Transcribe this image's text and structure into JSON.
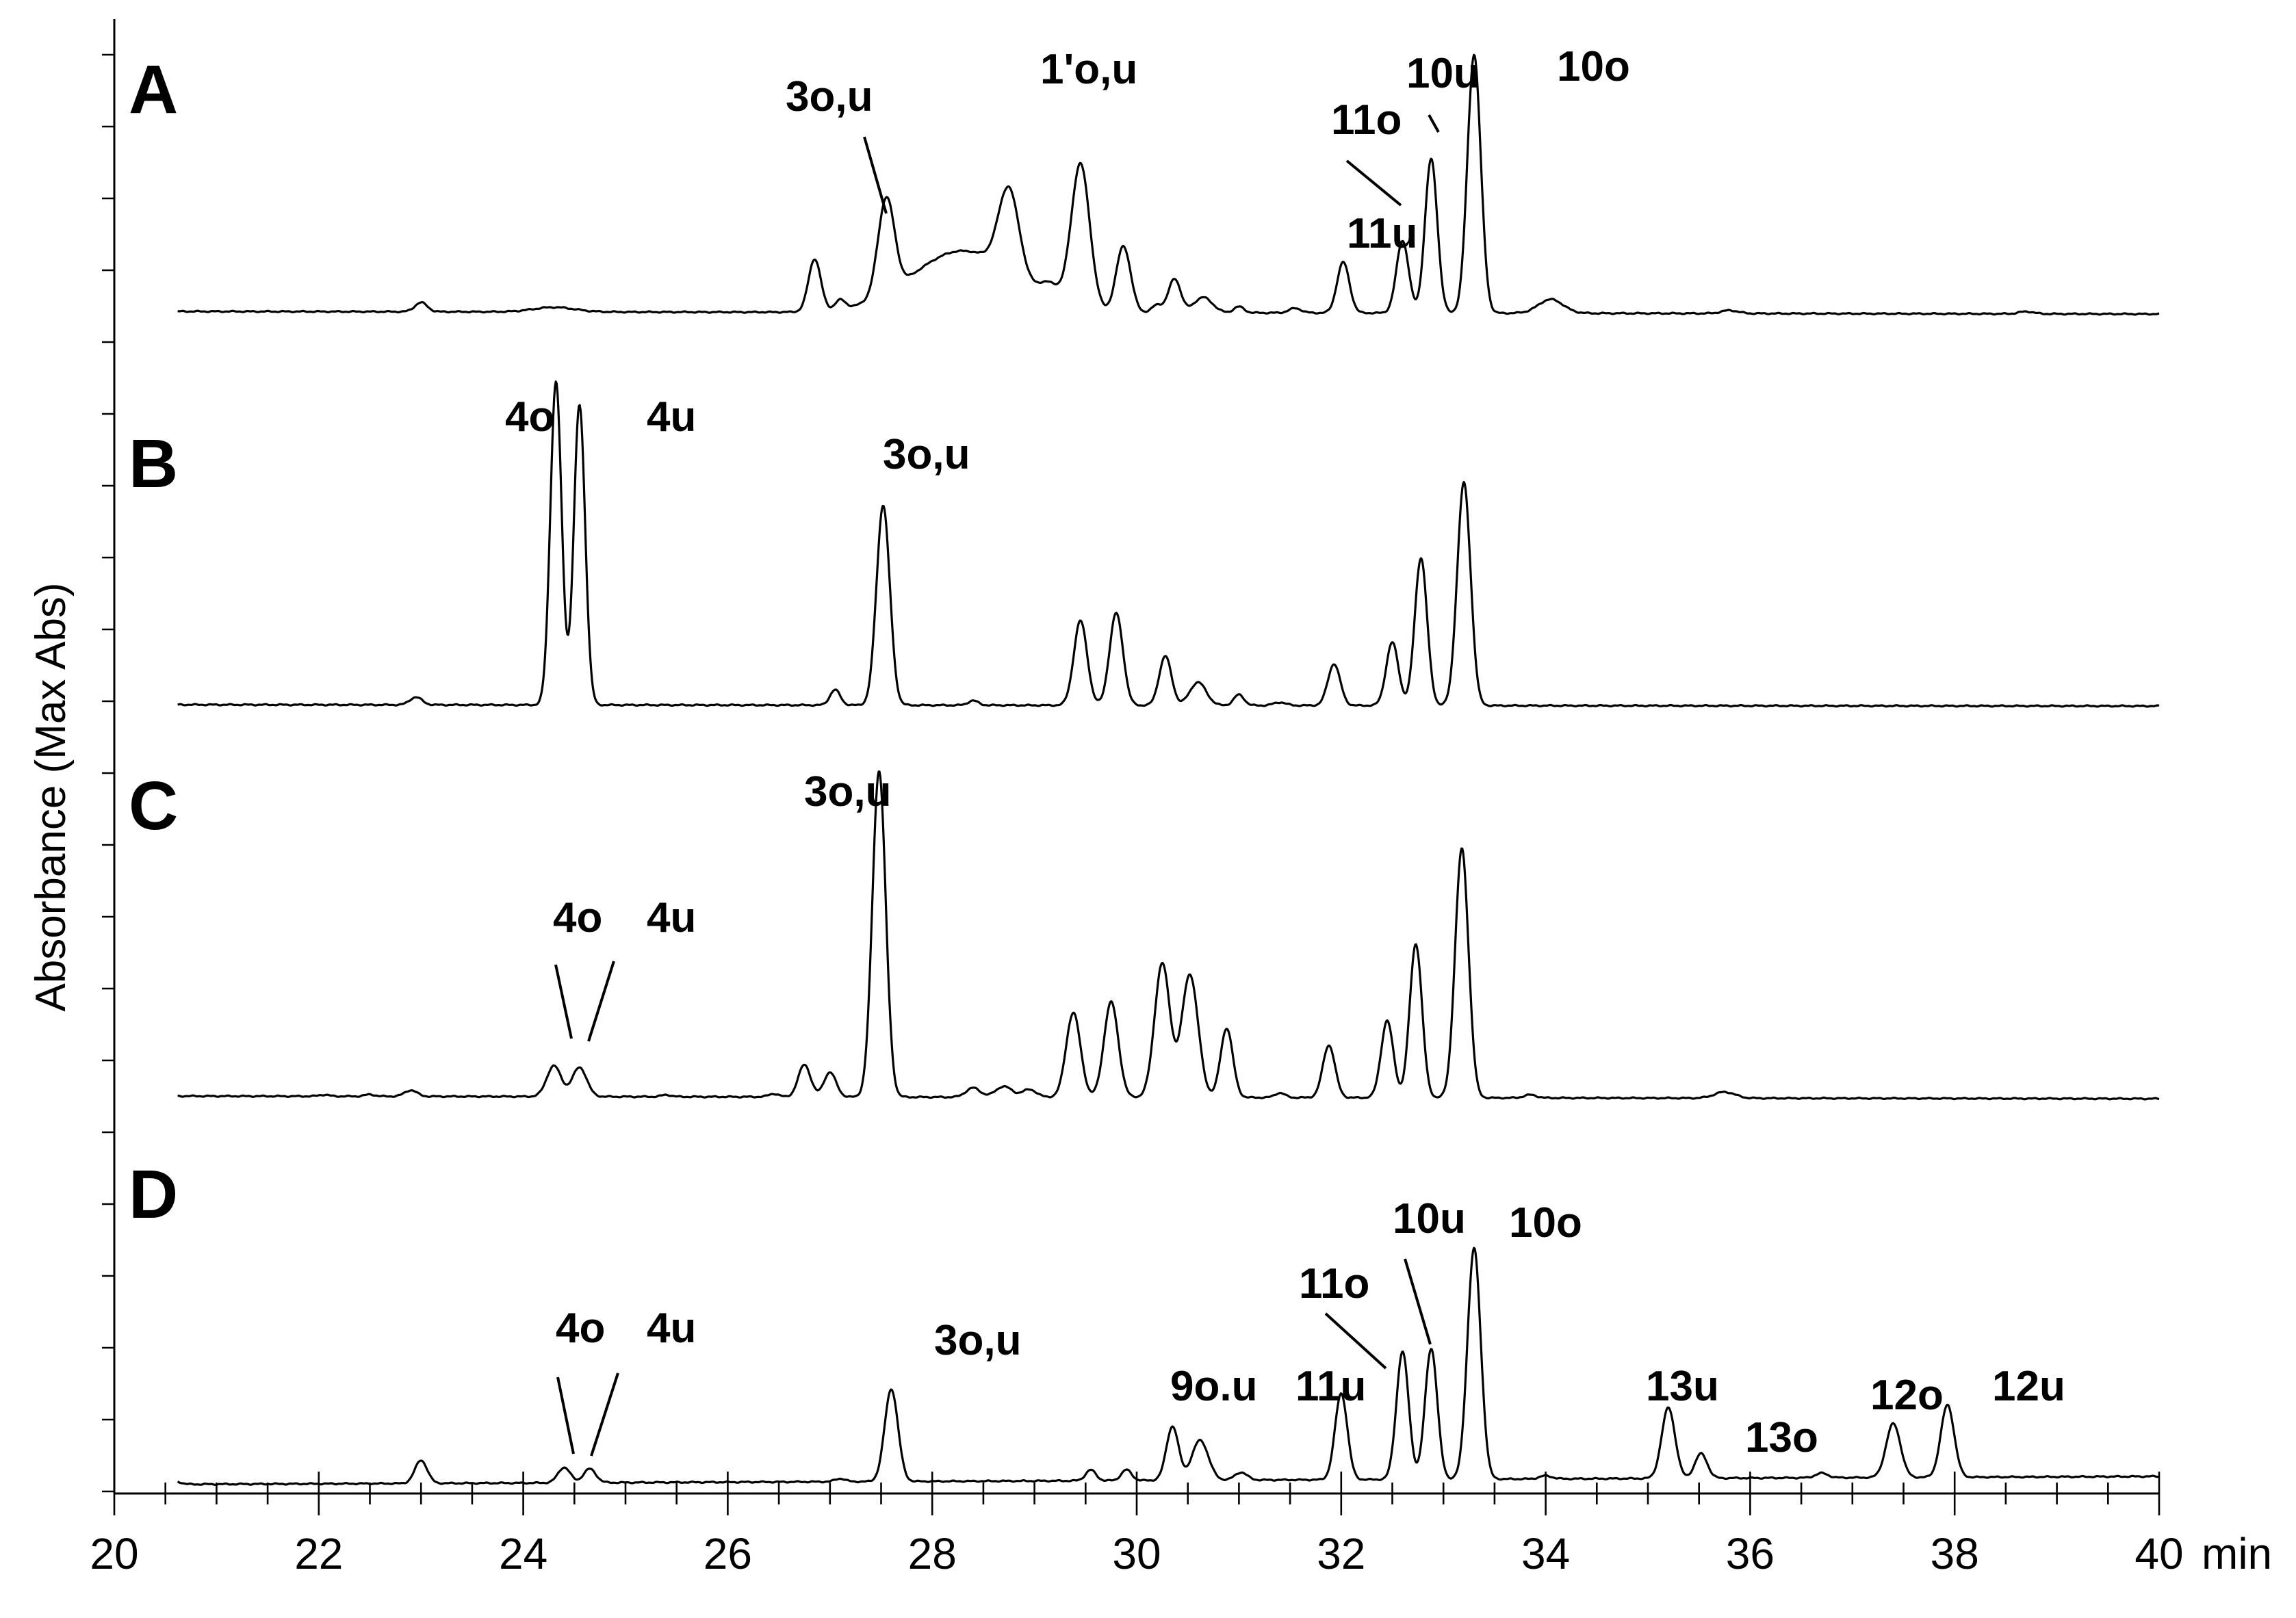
{
  "chart_data": {
    "type": "line",
    "xlabel": "min",
    "ylabel": "Absorbance (Max Abs)",
    "xlim": [
      20,
      40
    ],
    "x_ticks": [
      20,
      22,
      24,
      26,
      28,
      30,
      32,
      34,
      36,
      38,
      40
    ],
    "x_tick_labels": [
      "20",
      "22",
      "24",
      "26",
      "28",
      "30",
      "32",
      "34",
      "36",
      "38",
      "40"
    ],
    "x_unit_label": "min",
    "grid": false,
    "legend": "none",
    "panels": [
      {
        "name": "A",
        "peaks": [
          [
            23.0,
            0.06,
            0.06
          ],
          [
            24.3,
            0.03,
            0.2
          ],
          [
            26.85,
            0.34,
            0.06
          ],
          [
            27.1,
            0.06,
            0.05
          ],
          [
            27.55,
            0.62,
            0.08
          ],
          [
            28.3,
            0.4,
            0.5
          ],
          [
            28.75,
            0.55,
            0.1
          ],
          [
            29.15,
            0.1,
            0.1
          ],
          [
            29.45,
            0.94,
            0.09
          ],
          [
            29.87,
            0.43,
            0.07
          ],
          [
            30.2,
            0.05,
            0.05
          ],
          [
            30.37,
            0.22,
            0.06
          ],
          [
            30.65,
            0.1,
            0.09
          ],
          [
            31.0,
            0.04,
            0.05
          ],
          [
            31.55,
            0.03,
            0.06
          ],
          [
            32.02,
            0.33,
            0.06
          ],
          [
            32.6,
            0.47,
            0.06
          ],
          [
            32.88,
            1.0,
            0.06
          ],
          [
            33.3,
            1.68,
            0.065
          ],
          [
            34.05,
            0.09,
            0.12
          ],
          [
            35.8,
            0.02,
            0.08
          ],
          [
            38.7,
            0.015,
            0.07
          ]
        ],
        "labels": [
          {
            "text": "3o,u",
            "x": 27.55
          },
          {
            "text": "1'o,u",
            "x": 28.75
          },
          {
            "text": "11o",
            "x": 32.6
          },
          {
            "text": "10u",
            "x": 32.88
          },
          {
            "text": "10o",
            "x": 33.3
          },
          {
            "text": "11u",
            "x": 32.02
          }
        ]
      },
      {
        "name": "B",
        "peaks": [
          [
            22.95,
            0.05,
            0.06
          ],
          [
            24.32,
            2.1,
            0.055
          ],
          [
            24.55,
            1.95,
            0.055
          ],
          [
            27.05,
            0.1,
            0.05
          ],
          [
            27.52,
            1.3,
            0.065
          ],
          [
            28.4,
            0.03,
            0.05
          ],
          [
            29.45,
            0.55,
            0.065
          ],
          [
            29.8,
            0.6,
            0.065
          ],
          [
            30.28,
            0.32,
            0.06
          ],
          [
            30.6,
            0.15,
            0.08
          ],
          [
            31.0,
            0.07,
            0.05
          ],
          [
            31.4,
            0.02,
            0.06
          ],
          [
            31.93,
            0.27,
            0.06
          ],
          [
            32.5,
            0.41,
            0.06
          ],
          [
            32.78,
            0.96,
            0.06
          ],
          [
            33.2,
            1.45,
            0.065
          ]
        ],
        "labels": [
          {
            "text": "4o",
            "x": 24.32
          },
          {
            "text": "4u",
            "x": 24.55
          },
          {
            "text": "3o,u",
            "x": 27.52
          }
        ]
      },
      {
        "name": "C",
        "peaks": [
          [
            22.05,
            0.01,
            0.05
          ],
          [
            22.5,
            0.012,
            0.05
          ],
          [
            22.9,
            0.04,
            0.06
          ],
          [
            24.3,
            0.2,
            0.07
          ],
          [
            24.55,
            0.19,
            0.07
          ],
          [
            25.4,
            0.012,
            0.05
          ],
          [
            26.45,
            0.02,
            0.05
          ],
          [
            26.75,
            0.21,
            0.06
          ],
          [
            27.0,
            0.16,
            0.06
          ],
          [
            27.48,
            2.12,
            0.065
          ],
          [
            28.4,
            0.06,
            0.07
          ],
          [
            28.7,
            0.07,
            0.08
          ],
          [
            28.95,
            0.05,
            0.07
          ],
          [
            29.38,
            0.55,
            0.07
          ],
          [
            29.75,
            0.62,
            0.07
          ],
          [
            30.25,
            0.87,
            0.075
          ],
          [
            30.52,
            0.8,
            0.08
          ],
          [
            30.88,
            0.45,
            0.06
          ],
          [
            31.4,
            0.03,
            0.05
          ],
          [
            31.88,
            0.34,
            0.06
          ],
          [
            32.45,
            0.5,
            0.06
          ],
          [
            32.73,
            1.0,
            0.06
          ],
          [
            33.18,
            1.62,
            0.065
          ],
          [
            33.85,
            0.02,
            0.06
          ],
          [
            35.75,
            0.04,
            0.1
          ]
        ],
        "labels": [
          {
            "text": "3o,u",
            "x": 27.48
          },
          {
            "text": "4o",
            "x": 24.3
          },
          {
            "text": "4u",
            "x": 24.55
          }
        ]
      },
      {
        "name": "D",
        "peaks": [
          [
            20.6,
            0.02,
            0.05
          ],
          [
            23.0,
            0.15,
            0.06
          ],
          [
            24.4,
            0.1,
            0.06
          ],
          [
            24.65,
            0.09,
            0.06
          ],
          [
            27.1,
            0.02,
            0.05
          ],
          [
            27.6,
            0.6,
            0.065
          ],
          [
            29.55,
            0.07,
            0.05
          ],
          [
            29.9,
            0.07,
            0.05
          ],
          [
            30.35,
            0.35,
            0.06
          ],
          [
            30.62,
            0.26,
            0.08
          ],
          [
            31.02,
            0.05,
            0.06
          ],
          [
            32.0,
            0.56,
            0.06
          ],
          [
            32.6,
            0.83,
            0.06
          ],
          [
            32.88,
            0.85,
            0.06
          ],
          [
            33.3,
            1.5,
            0.065
          ],
          [
            34.0,
            0.02,
            0.06
          ],
          [
            35.2,
            0.46,
            0.065
          ],
          [
            35.52,
            0.16,
            0.06
          ],
          [
            36.7,
            0.03,
            0.06
          ],
          [
            37.4,
            0.35,
            0.07
          ],
          [
            37.93,
            0.47,
            0.065
          ]
        ],
        "labels": [
          {
            "text": "4o",
            "x": 24.4
          },
          {
            "text": "4u",
            "x": 24.65
          },
          {
            "text": "3o,u",
            "x": 27.6
          },
          {
            "text": "9o.u",
            "x": 30.35
          },
          {
            "text": "11u",
            "x": 32.0
          },
          {
            "text": "11o",
            "x": 32.6
          },
          {
            "text": "10u",
            "x": 32.88
          },
          {
            "text": "10o",
            "x": 33.3
          },
          {
            "text": "13u",
            "x": 35.2
          },
          {
            "text": "13o",
            "x": 35.52
          },
          {
            "text": "12o",
            "x": 37.4
          },
          {
            "text": "12u",
            "x": 37.93
          }
        ]
      }
    ]
  }
}
